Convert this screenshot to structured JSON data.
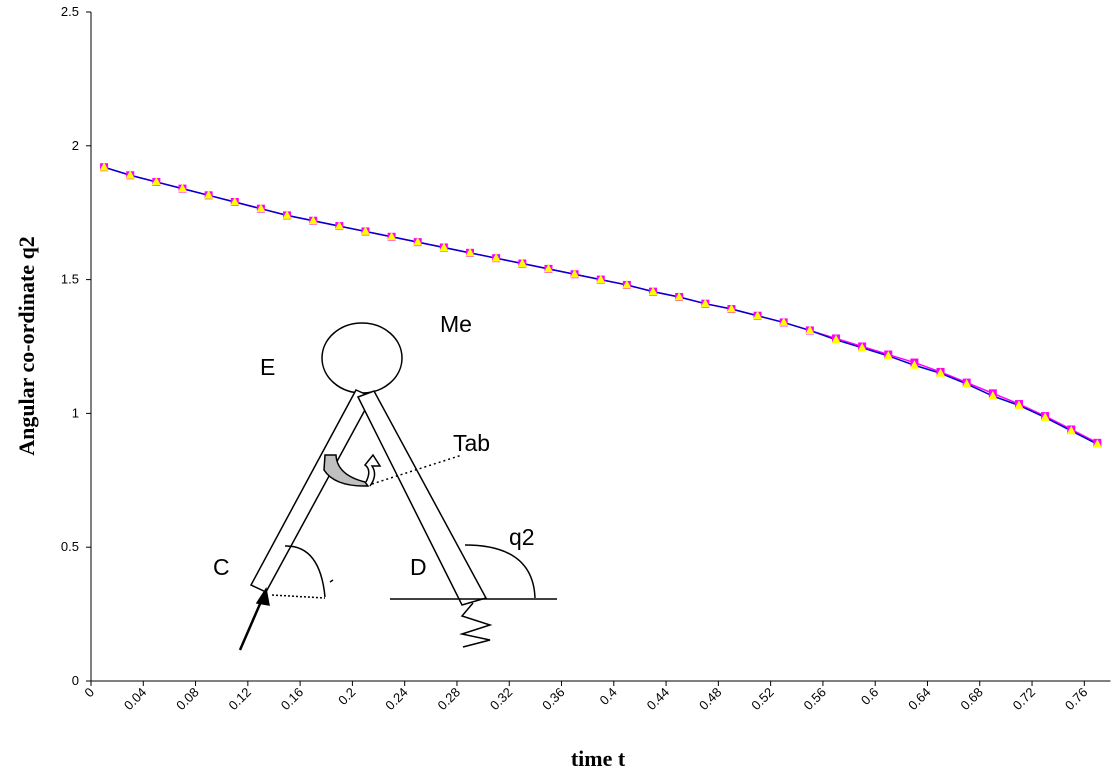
{
  "chart_data": {
    "type": "line",
    "y_label": "Angular co-ordinate q2",
    "x_label": "time t",
    "x": [
      0.01,
      0.03,
      0.05,
      0.07,
      0.09,
      0.11,
      0.13,
      0.15,
      0.17,
      0.19,
      0.21,
      0.23,
      0.25,
      0.27,
      0.29,
      0.31,
      0.33,
      0.35,
      0.37,
      0.39,
      0.41,
      0.43,
      0.45,
      0.47,
      0.49,
      0.51,
      0.53,
      0.55,
      0.57,
      0.59,
      0.61,
      0.63,
      0.65,
      0.67,
      0.69,
      0.71,
      0.73,
      0.75,
      0.77
    ],
    "series": [
      {
        "color": "#ff00ff",
        "marker": "square",
        "marker_color": "#ff00ff",
        "values": [
          1.92,
          1.89,
          1.865,
          1.84,
          1.815,
          1.79,
          1.765,
          1.74,
          1.72,
          1.7,
          1.68,
          1.66,
          1.64,
          1.62,
          1.6,
          1.58,
          1.56,
          1.54,
          1.52,
          1.5,
          1.48,
          1.455,
          1.435,
          1.41,
          1.39,
          1.365,
          1.34,
          1.31,
          1.28,
          1.25,
          1.22,
          1.19,
          1.155,
          1.115,
          1.075,
          1.035,
          0.99,
          0.94,
          0.89
        ]
      },
      {
        "color": "#0000cc",
        "marker": "triangle",
        "marker_color": "#ffff00",
        "values": [
          1.92,
          1.89,
          1.865,
          1.84,
          1.815,
          1.79,
          1.765,
          1.74,
          1.72,
          1.7,
          1.68,
          1.66,
          1.64,
          1.62,
          1.6,
          1.58,
          1.56,
          1.54,
          1.52,
          1.5,
          1.48,
          1.455,
          1.435,
          1.41,
          1.39,
          1.365,
          1.34,
          1.31,
          1.275,
          1.245,
          1.215,
          1.18,
          1.15,
          1.11,
          1.065,
          1.03,
          0.985,
          0.935,
          0.885
        ]
      }
    ],
    "xlim": [
      0,
      0.78
    ],
    "xticks": [
      0,
      0.04,
      0.08,
      0.12,
      0.16,
      0.2,
      0.24,
      0.28,
      0.32,
      0.36,
      0.4,
      0.44,
      0.48,
      0.52,
      0.56,
      0.6,
      0.64,
      0.68,
      0.72,
      0.76
    ],
    "ylim": [
      0,
      2.5
    ],
    "yticks": [
      0,
      0.5,
      1,
      1.5,
      2,
      2.5
    ],
    "grid": false,
    "annotations": [
      "Me",
      "E",
      "Tab",
      "C",
      "D",
      "q2"
    ]
  }
}
